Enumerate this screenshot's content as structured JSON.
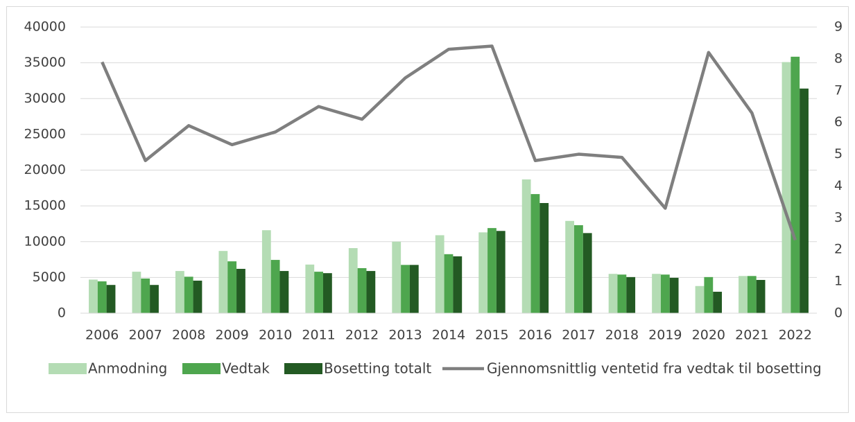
{
  "chart_data": {
    "type": "bar_line",
    "categories": [
      "2006",
      "2007",
      "2008",
      "2009",
      "2010",
      "2011",
      "2012",
      "2013",
      "2014",
      "2015",
      "2016",
      "2017",
      "2018",
      "2019",
      "2020",
      "2021",
      "2022"
    ],
    "series": [
      {
        "name": "Anmodning",
        "color": "#b4dcb4",
        "values": [
          4700,
          5800,
          5900,
          8700,
          11600,
          6800,
          9100,
          10000,
          10900,
          11300,
          18700,
          12900,
          5500,
          5500,
          3800,
          5200,
          35100
        ]
      },
      {
        "name": "Vedtak",
        "color": "#4ea64e",
        "values": [
          4450,
          4850,
          5100,
          7250,
          7450,
          5800,
          6300,
          6750,
          8250,
          11900,
          16650,
          12300,
          5400,
          5400,
          5050,
          5200,
          35850
        ]
      },
      {
        "name": "Bosetting totalt",
        "color": "#235a23",
        "values": [
          3950,
          3950,
          4550,
          6200,
          5900,
          5600,
          5900,
          6750,
          7950,
          11500,
          15400,
          11200,
          5050,
          4950,
          3000,
          4650,
          31400
        ]
      },
      {
        "name": "Gjennomsnittlig ventetid fra vedtak til bosetting",
        "color": "#7f7f7f",
        "axis": "y2",
        "type": "line",
        "values": [
          7.9,
          4.8,
          5.9,
          5.3,
          5.7,
          6.5,
          6.1,
          7.4,
          8.3,
          8.4,
          4.8,
          5.0,
          4.9,
          3.3,
          8.2,
          6.3,
          2.3
        ]
      }
    ],
    "ylim": [
      0,
      40000
    ],
    "yticks": [
      0,
      5000,
      10000,
      15000,
      20000,
      25000,
      30000,
      35000,
      40000
    ],
    "y2lim": [
      0,
      9
    ],
    "y2ticks": [
      0,
      1,
      2,
      3,
      4,
      5,
      6,
      7,
      8,
      9
    ],
    "grid": true,
    "legend": "bottom"
  }
}
